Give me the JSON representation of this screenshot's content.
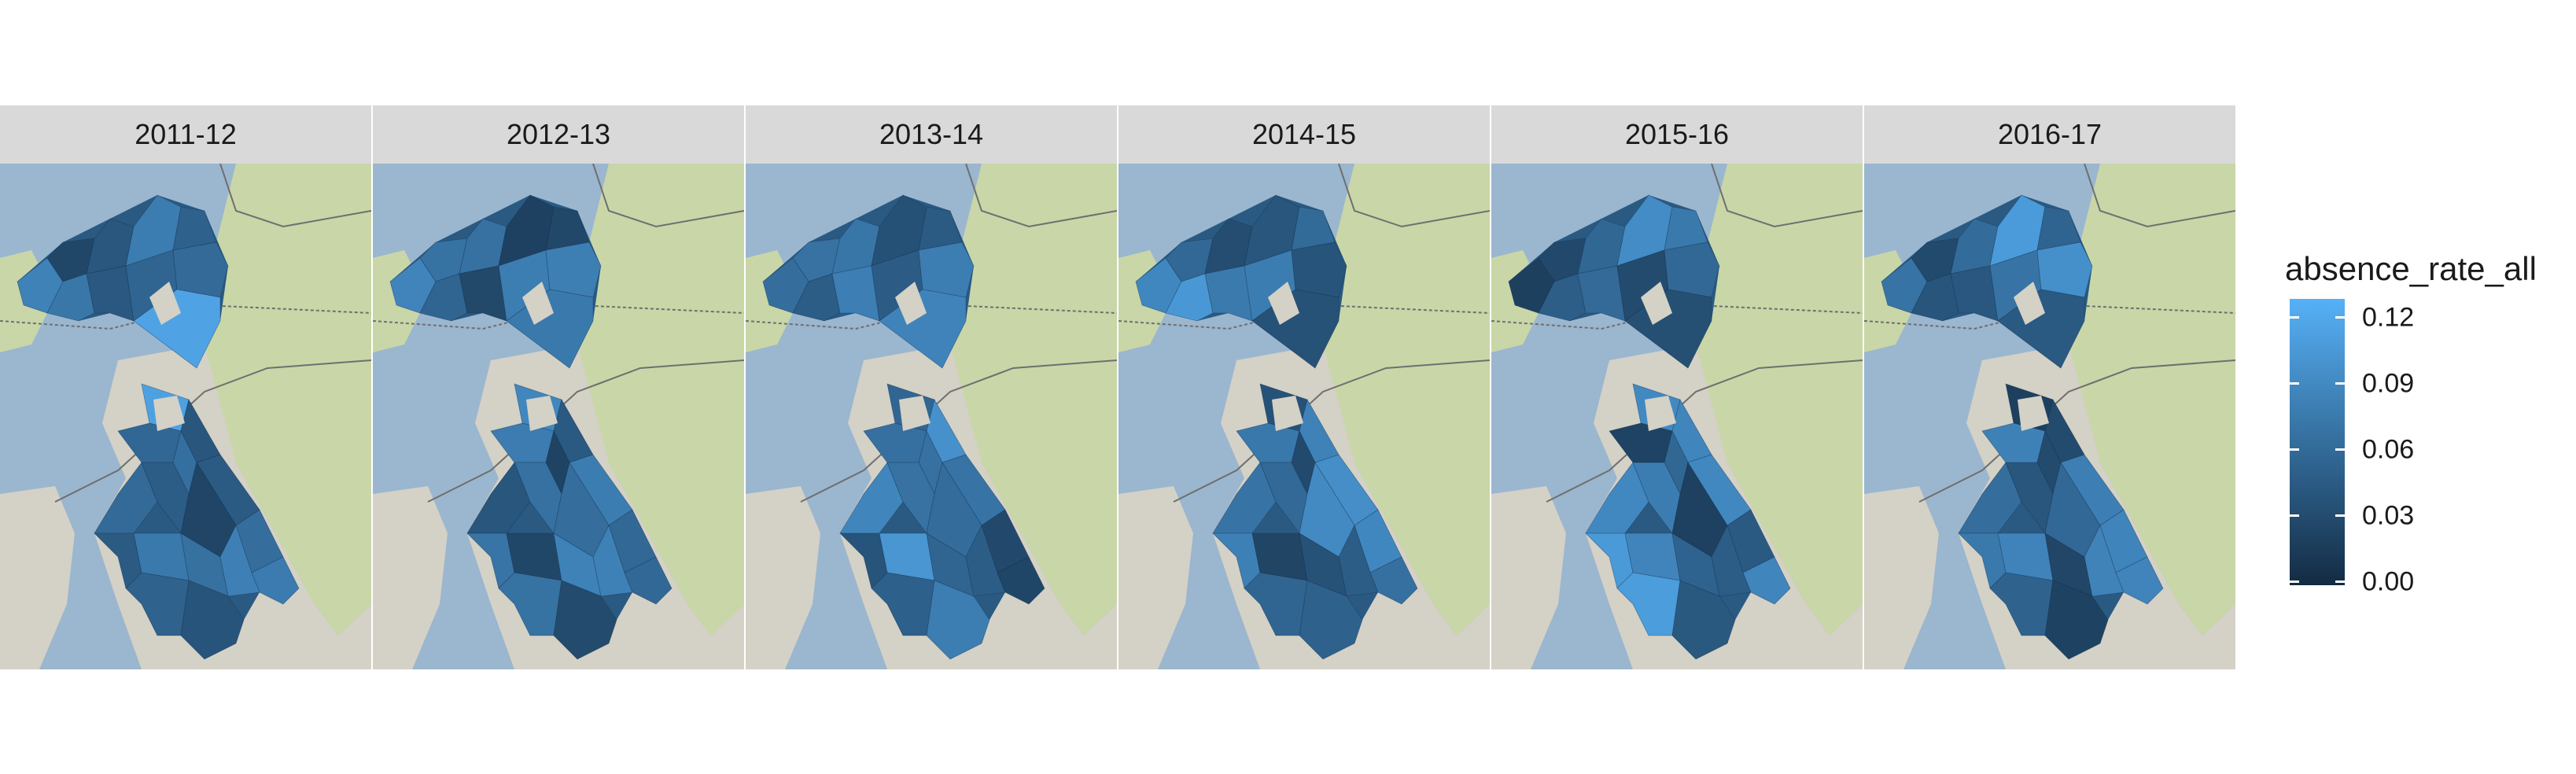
{
  "panels": [
    {
      "label": "2011-12",
      "seed": 11
    },
    {
      "label": "2012-13",
      "seed": 23
    },
    {
      "label": "2013-14",
      "seed": 37
    },
    {
      "label": "2014-15",
      "seed": 41
    },
    {
      "label": "2015-16",
      "seed": 53
    },
    {
      "label": "2016-17",
      "seed": 67
    }
  ],
  "legend": {
    "title": "absence_rate_all",
    "ticks": [
      "0.12",
      "0.09",
      "0.06",
      "0.03",
      "0.00"
    ],
    "tick_values": [
      0.12,
      0.09,
      0.06,
      0.03,
      0.0
    ],
    "min": 0.0,
    "max": 0.13,
    "color_low": "#132b43",
    "color_high": "#56b1f7"
  },
  "map_colors": {
    "water": "#9bb6cf",
    "land_green": "#c9d6a8",
    "land_urban": "#d4d1c6",
    "road": "#6f6f6f"
  }
}
